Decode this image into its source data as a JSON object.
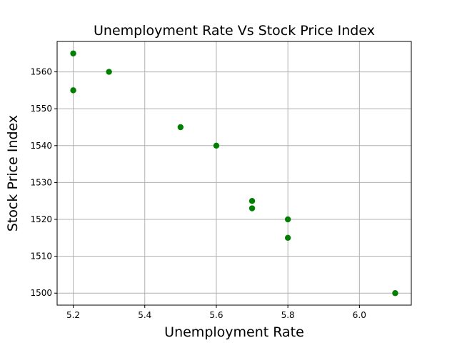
{
  "chart_data": {
    "type": "scatter",
    "title": "Unemployment Rate Vs Stock Price Index",
    "xlabel": "Unemployment Rate",
    "ylabel": "Stock Price Index",
    "xlim": [
      5.155,
      6.145
    ],
    "ylim": [
      1496.75,
      1568.25
    ],
    "xticks": [
      5.2,
      5.4,
      5.6,
      5.8,
      6.0
    ],
    "xtick_labels": [
      "5.2",
      "5.4",
      "5.6",
      "5.8",
      "6.0"
    ],
    "yticks": [
      1500,
      1510,
      1520,
      1530,
      1540,
      1550,
      1560
    ],
    "ytick_labels": [
      "1500",
      "1510",
      "1520",
      "1530",
      "1540",
      "1550",
      "1560"
    ],
    "grid": true,
    "marker_color": "#008000",
    "points": [
      {
        "x": 5.2,
        "y": 1565
      },
      {
        "x": 5.3,
        "y": 1560
      },
      {
        "x": 5.2,
        "y": 1555
      },
      {
        "x": 5.5,
        "y": 1545
      },
      {
        "x": 5.6,
        "y": 1540
      },
      {
        "x": 5.7,
        "y": 1525
      },
      {
        "x": 5.7,
        "y": 1523
      },
      {
        "x": 5.8,
        "y": 1520
      },
      {
        "x": 5.8,
        "y": 1515
      },
      {
        "x": 6.1,
        "y": 1500
      }
    ]
  }
}
